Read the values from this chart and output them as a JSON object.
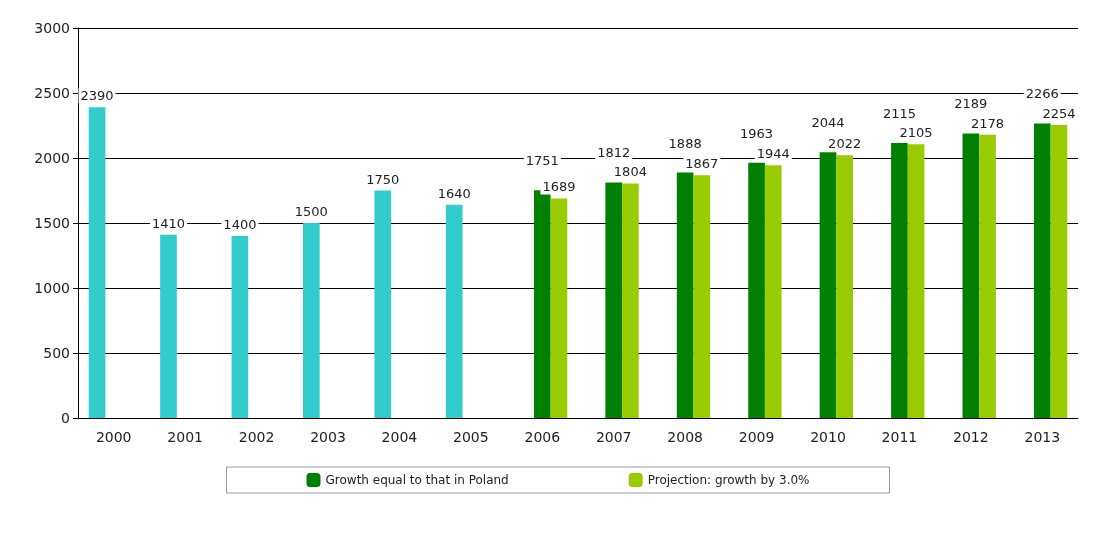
{
  "chart_data": {
    "type": "bar",
    "categories": [
      "2000",
      "2001",
      "2002",
      "2003",
      "2004",
      "2005",
      "2006",
      "2007",
      "2008",
      "2009",
      "2010",
      "2011",
      "2012",
      "2013"
    ],
    "series": [
      {
        "color": "#33cccc",
        "values": [
          2390,
          1410,
          1400,
          1500,
          1750,
          1640,
          null,
          null,
          null,
          null,
          null,
          null,
          null,
          null
        ]
      },
      {
        "name": "Growth equal to that in Poland",
        "color": "#008000",
        "values": [
          null,
          null,
          null,
          null,
          null,
          null,
          1751,
          1812,
          1888,
          1963,
          2044,
          2115,
          2189,
          2266
        ]
      },
      {
        "name": "Projection: growth by 3.0%",
        "color": "#99cc00",
        "values": [
          null,
          null,
          null,
          null,
          null,
          null,
          1689,
          1804,
          1867,
          1944,
          2022,
          2105,
          2178,
          2254
        ]
      }
    ],
    "ylim": [
      0,
      3000
    ],
    "yticks": [
      0,
      500,
      1000,
      1500,
      2000,
      2500,
      3000
    ],
    "grid": "y",
    "legend": "bottom",
    "data_labels": true
  }
}
